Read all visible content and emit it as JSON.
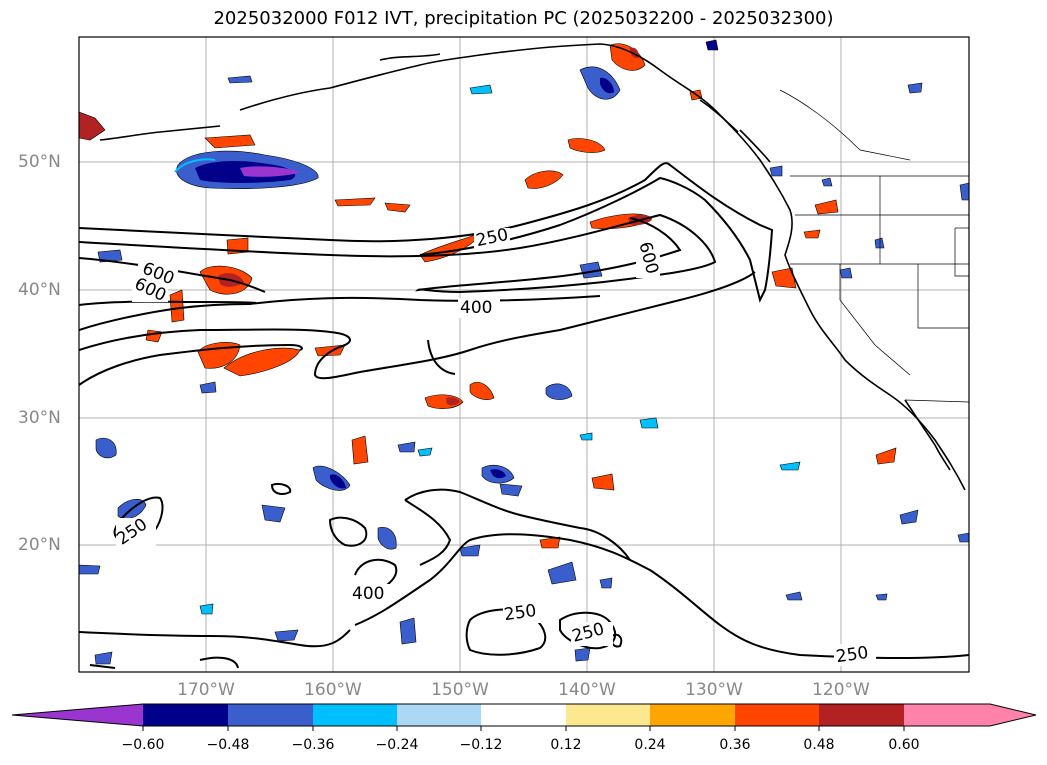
{
  "title": "2025032000 F012 IVT, precipitation PC (2025032200 - 2025032300)",
  "lat_labels": [
    "50°N",
    "40°N",
    "30°N",
    "20°N"
  ],
  "lon_labels": [
    "170°W",
    "160°W",
    "150°W",
    "140°W",
    "130°W",
    "120°W"
  ],
  "contour_labels": [
    "250",
    "600",
    "600",
    "600",
    "400",
    "250",
    "400",
    "250",
    "250",
    "250"
  ],
  "colorbar": {
    "ticks": [
      "−0.60",
      "−0.48",
      "−0.36",
      "−0.24",
      "−0.12",
      "0.12",
      "0.24",
      "0.36",
      "0.48",
      "0.60"
    ],
    "colors": [
      "#9a36cf",
      "#00008b",
      "#3a5fcd",
      "#00bfff",
      "#add8f5",
      "#ffffff",
      "#fce98f",
      "#ffa500",
      "#ff4500",
      "#b22222",
      "#ff82ab"
    ]
  }
}
